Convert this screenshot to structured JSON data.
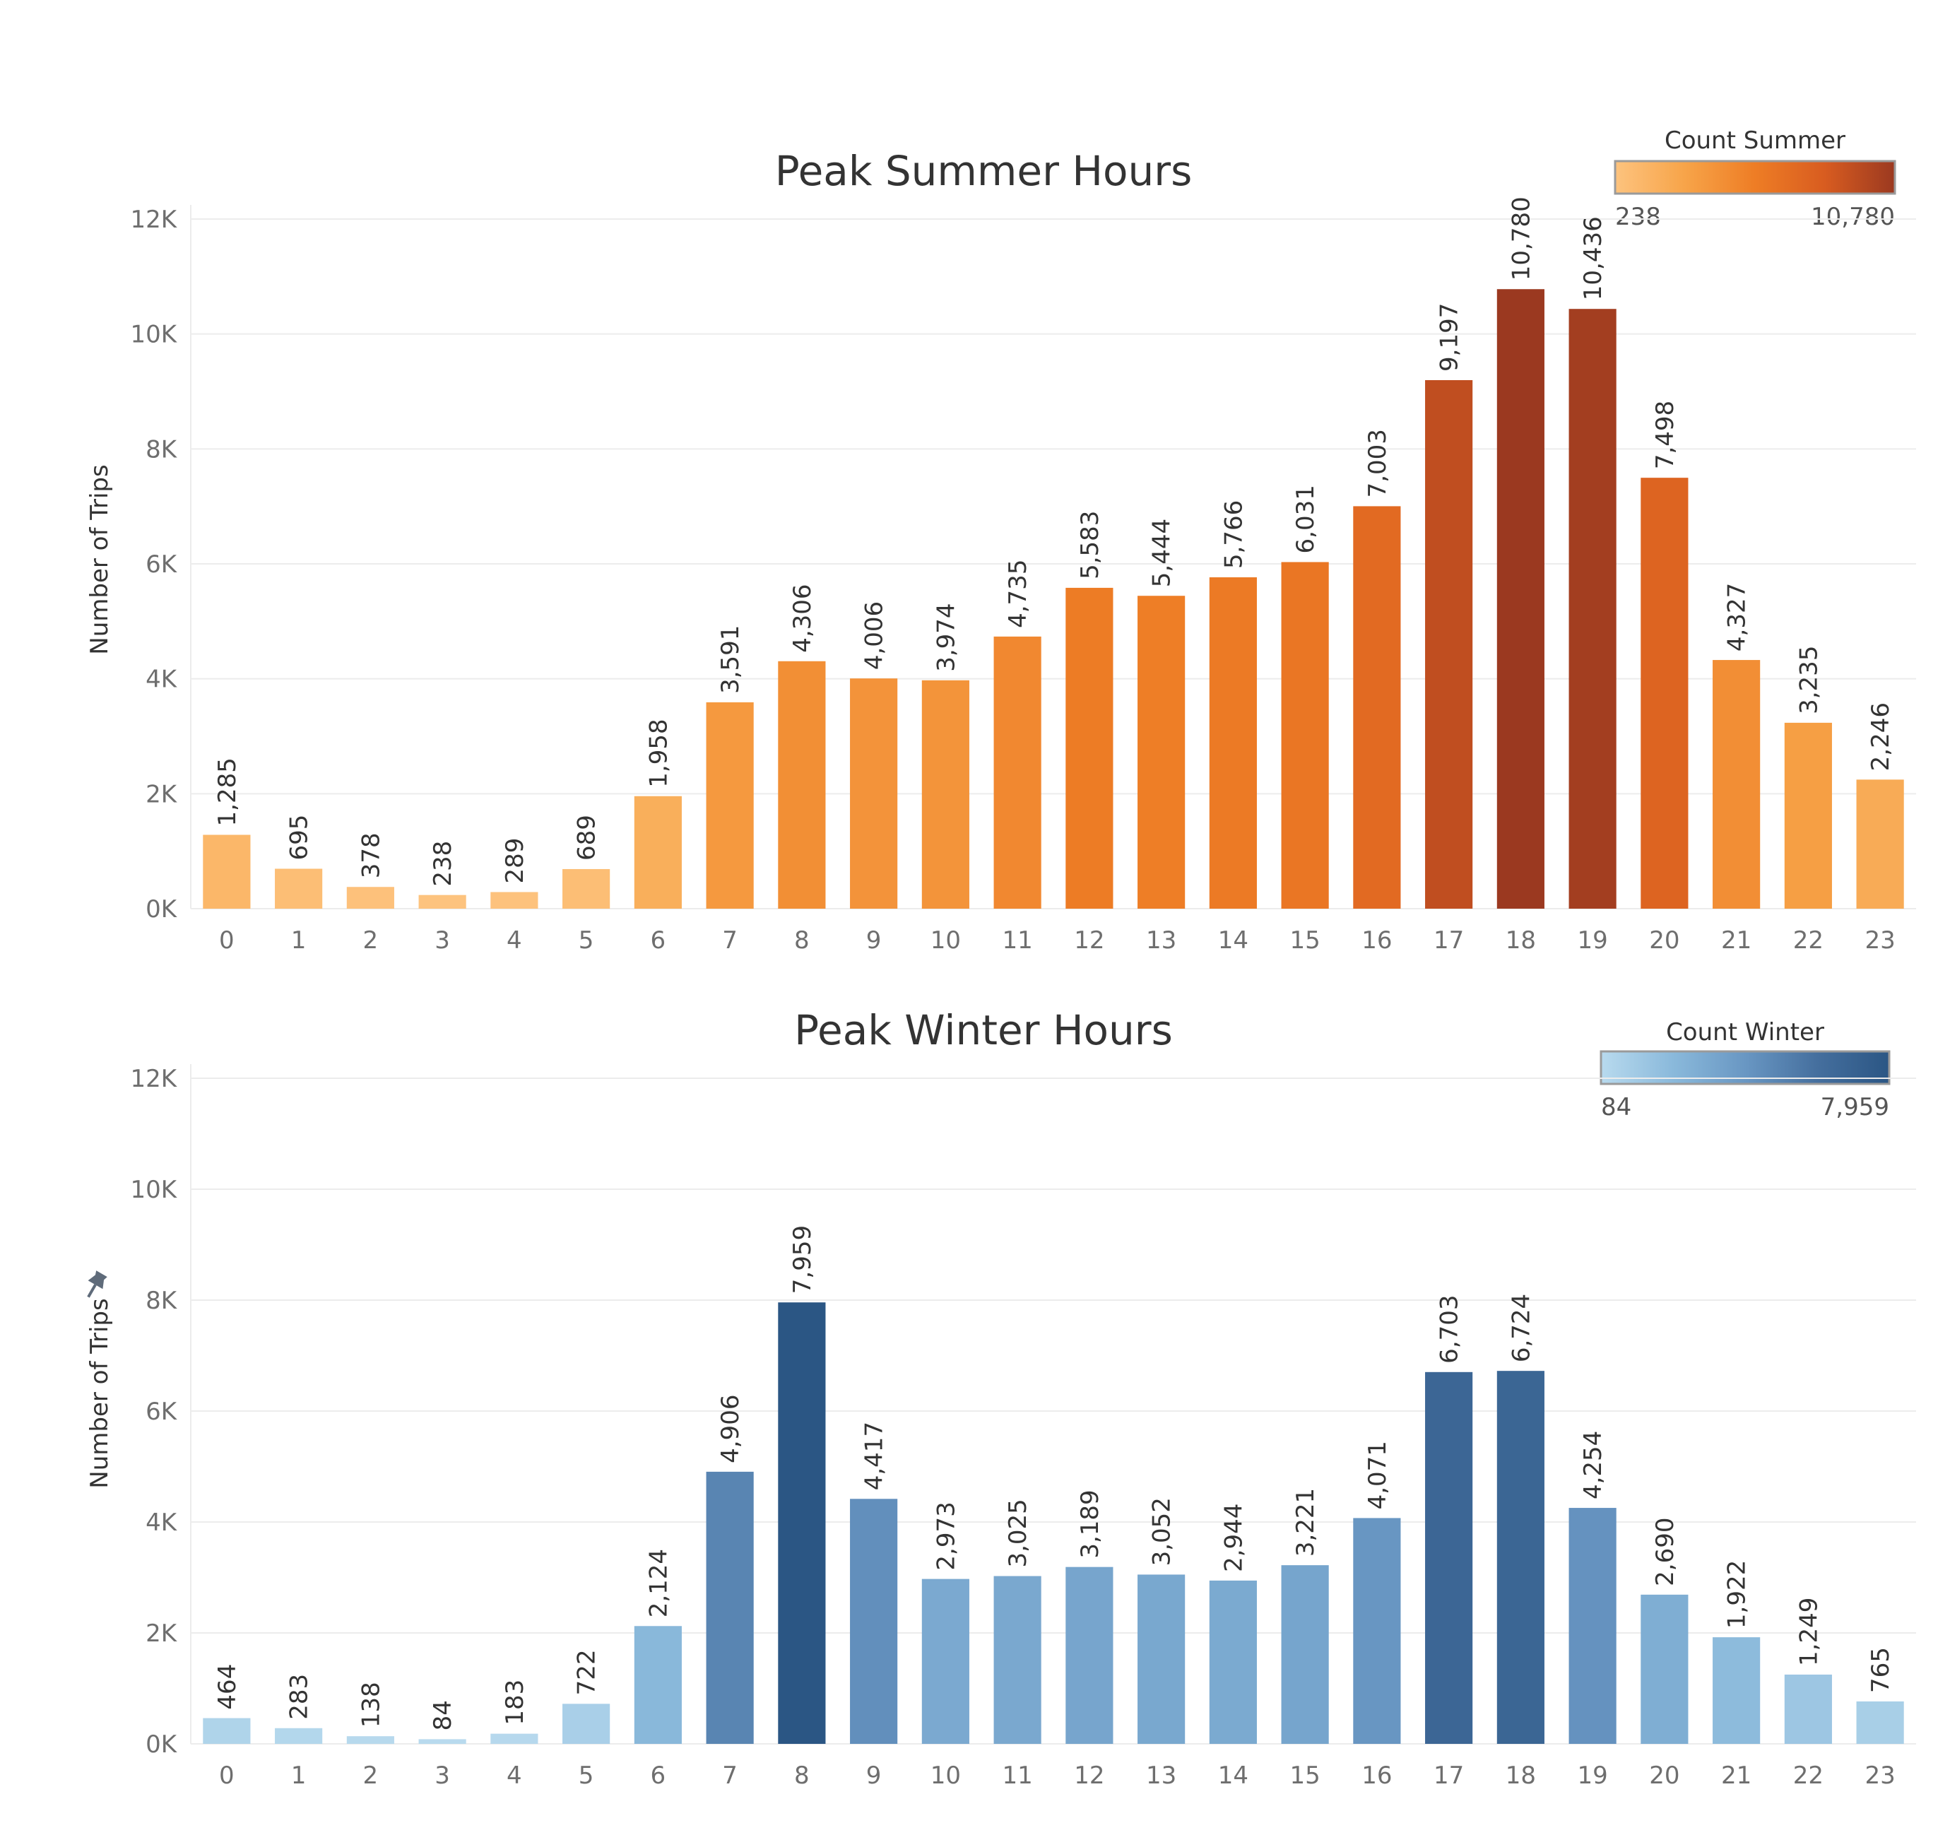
{
  "chart_data": [
    {
      "type": "bar",
      "title": "Peak Summer Hours",
      "xlabel": "",
      "ylabel": "Number of Trips",
      "ylim": [
        0,
        12000
      ],
      "yticks": [
        "0K",
        "2K",
        "4K",
        "6K",
        "8K",
        "10K",
        "12K"
      ],
      "grid": true,
      "categories": [
        "0",
        "1",
        "2",
        "3",
        "4",
        "5",
        "6",
        "7",
        "8",
        "9",
        "10",
        "11",
        "12",
        "13",
        "14",
        "15",
        "16",
        "17",
        "18",
        "19",
        "20",
        "21",
        "22",
        "23"
      ],
      "values": [
        1285,
        695,
        378,
        238,
        289,
        689,
        1958,
        3591,
        4306,
        4006,
        3974,
        4735,
        5583,
        5444,
        5766,
        6031,
        7003,
        9197,
        10780,
        10436,
        7498,
        4327,
        3235,
        2246
      ],
      "value_labels": [
        "1,285",
        "695",
        "378",
        "238",
        "289",
        "689",
        "1,958",
        "3,591",
        "4,306",
        "4,006",
        "3,974",
        "4,735",
        "5,583",
        "5,444",
        "5,766",
        "6,031",
        "7,003",
        "9,197",
        "10,780",
        "10,436",
        "7,498",
        "4,327",
        "3,235",
        "2,246"
      ],
      "legend": {
        "title": "Count Summer",
        "min_label": "238",
        "max_label": "10,780",
        "min": 238,
        "max": 10780,
        "colors": [
          "#fdc37e",
          "#f7a449",
          "#ee7d25",
          "#d85c20",
          "#9b3920"
        ],
        "position": "top-right"
      }
    },
    {
      "type": "bar",
      "title": "Peak Winter Hours",
      "xlabel": "",
      "ylabel": "Number of Trips",
      "ylim": [
        0,
        12000
      ],
      "yticks": [
        "0K",
        "2K",
        "4K",
        "6K",
        "8K",
        "10K",
        "12K"
      ],
      "grid": true,
      "categories": [
        "0",
        "1",
        "2",
        "3",
        "4",
        "5",
        "6",
        "7",
        "8",
        "9",
        "10",
        "11",
        "12",
        "13",
        "14",
        "15",
        "16",
        "17",
        "18",
        "19",
        "20",
        "21",
        "22",
        "23"
      ],
      "values": [
        464,
        283,
        138,
        84,
        183,
        722,
        2124,
        4906,
        7959,
        4417,
        2973,
        3025,
        3189,
        3052,
        2944,
        3221,
        4071,
        6703,
        6724,
        4254,
        2690,
        1922,
        1249,
        765
      ],
      "value_labels": [
        "464",
        "283",
        "138",
        "84",
        "183",
        "722",
        "2,124",
        "4,906",
        "7,959",
        "4,417",
        "2,973",
        "3,025",
        "3,189",
        "3,052",
        "2,944",
        "3,221",
        "4,071",
        "6,703",
        "6,724",
        "4,254",
        "2,690",
        "1,922",
        "1,249",
        "765"
      ],
      "legend": {
        "title": "Count Winter",
        "min_label": "84",
        "max_label": "7,959",
        "min": 84,
        "max": 7959,
        "colors": [
          "#b8daee",
          "#8ab9db",
          "#6997c3",
          "#456f9e",
          "#2b5684"
        ],
        "position": "top-right"
      }
    }
  ],
  "colors": {
    "axis_text": "#6e6e6e",
    "title_text": "#333333",
    "gridline": "#ececec",
    "pin_icon": "#5f6b7a"
  },
  "icons": {
    "pin": "pin-icon"
  }
}
